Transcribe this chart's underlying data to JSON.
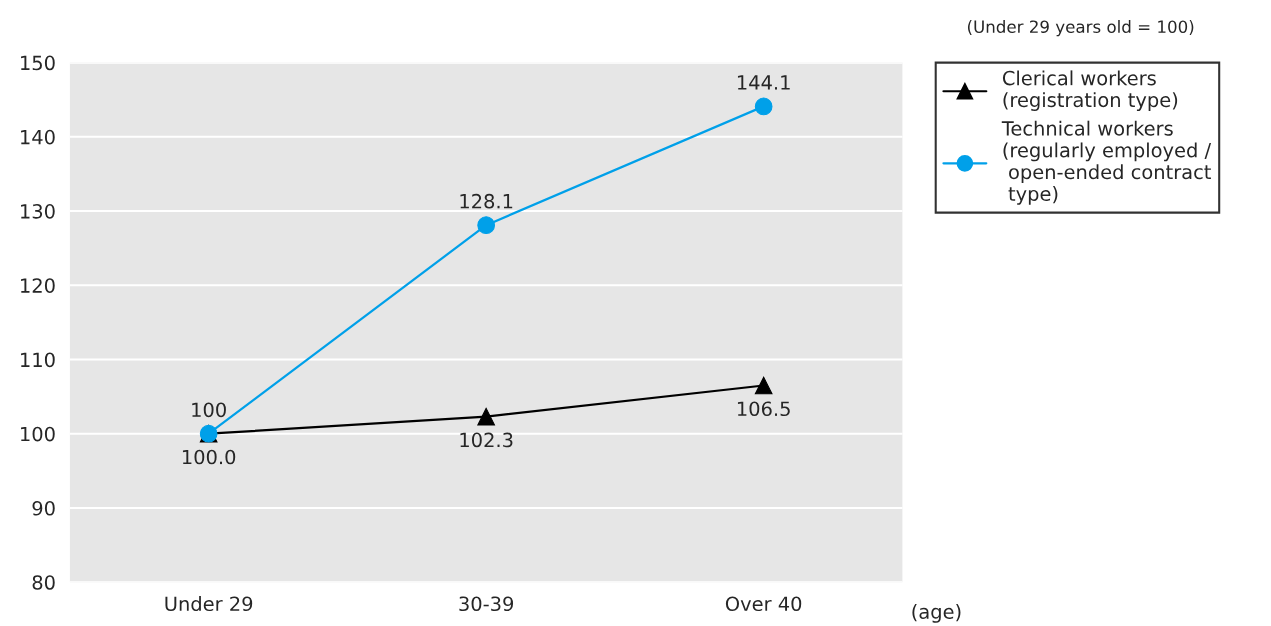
{
  "chart_data": {
    "type": "line",
    "categories": [
      "Under 29",
      "30-39",
      "Over 40"
    ],
    "xlabel": "(age)",
    "annotations": [
      "(Under 29 years old = 100)"
    ],
    "series": [
      {
        "name": "Clerical workers\n(registration type)",
        "color": "#000000",
        "marker": "triangle",
        "values": [
          100.0,
          102.3,
          106.5
        ],
        "value_labels": [
          "100.0",
          "102.3",
          "106.5"
        ]
      },
      {
        "name": "Technical workers\n(regularly employed /\n open-ended contract\n type)",
        "color": "#00a0e9",
        "marker": "circle",
        "values": [
          100,
          128.1,
          144.1
        ],
        "value_labels": [
          "100",
          "128.1",
          "144.1"
        ]
      }
    ],
    "ylim": [
      80,
      150
    ],
    "yticks": [
      80,
      90,
      100,
      110,
      120,
      130,
      140,
      150
    ],
    "grid": "y",
    "legend": "top right"
  }
}
